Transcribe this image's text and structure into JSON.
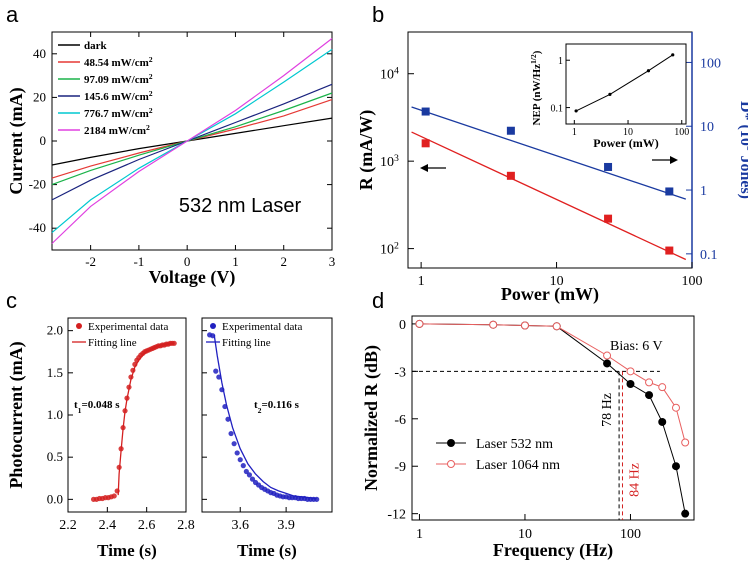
{
  "chart_data": [
    {
      "panel": "a",
      "type": "line",
      "xlabel": "Voltage (V)",
      "ylabel": "Current (mA)",
      "xlim": [
        -2.8,
        3
      ],
      "ylim": [
        -50,
        50
      ],
      "xticks": [
        -2,
        -1,
        0,
        1,
        2,
        3
      ],
      "yticks": [
        -40,
        -20,
        0,
        20,
        40
      ],
      "annotation": "532 nm Laser",
      "legend": {
        "position": "top-left",
        "entries": [
          {
            "label": "dark",
            "sup": ""
          },
          {
            "label": "48.54 mW/cm",
            "sup": "2"
          },
          {
            "label": "97.09 mW/cm",
            "sup": "2"
          },
          {
            "label": "145.6 mW/cm",
            "sup": "2"
          },
          {
            "label": "776.7 mW/cm",
            "sup": "2"
          },
          {
            "label": "2184  mW/cm",
            "sup": "2"
          }
        ]
      },
      "series": [
        {
          "color": "#000000",
          "x": [
            -2.8,
            -2,
            -1,
            0,
            1,
            2,
            3
          ],
          "y": [
            -11,
            -7.5,
            -3.5,
            0,
            3.5,
            7,
            10.5
          ]
        },
        {
          "color": "#e53935",
          "x": [
            -2.8,
            -2,
            -1,
            0,
            1,
            2,
            3
          ],
          "y": [
            -17,
            -11.5,
            -5.5,
            0,
            5.5,
            11.5,
            19
          ]
        },
        {
          "color": "#1bb34a",
          "x": [
            -2.8,
            -2,
            -1,
            0,
            1,
            2,
            3
          ],
          "y": [
            -20,
            -13.5,
            -6.5,
            0,
            6.5,
            14,
            22
          ]
        },
        {
          "color": "#1a237e",
          "x": [
            -2.8,
            -2,
            -1,
            0,
            1,
            2,
            3
          ],
          "y": [
            -27,
            -18,
            -8.5,
            0,
            8.5,
            17,
            26
          ]
        },
        {
          "color": "#00c8d0",
          "x": [
            -2.8,
            -2,
            -1,
            0,
            1,
            2,
            3
          ],
          "y": [
            -42,
            -27,
            -12.5,
            0,
            12.5,
            27,
            42
          ]
        },
        {
          "color": "#e040e0",
          "x": [
            -2.8,
            -2,
            -1,
            0,
            1,
            2,
            3
          ],
          "y": [
            -47,
            -30,
            -14,
            0,
            14,
            30,
            47
          ]
        }
      ]
    },
    {
      "panel": "b",
      "type": "scatter",
      "xlabel": "Power (mW)",
      "ylabel": "R (mA/W)",
      "ylabel2_main": "D* (10",
      "ylabel2_sup": "9",
      "ylabel2_end": " Jones)",
      "xscale": "log",
      "yscale": "log",
      "xlim": [
        0.8,
        100
      ],
      "ylim": [
        60,
        30000
      ],
      "ylim2": [
        0.06,
        300
      ],
      "xticks": [
        {
          "value": 1,
          "label": "1"
        },
        {
          "value": 10,
          "label": "10"
        },
        {
          "value": 100,
          "label": "100"
        }
      ],
      "yticks": [
        {
          "value": 100,
          "base": "10",
          "exp": "2"
        },
        {
          "value": 1000,
          "base": "10",
          "exp": "3"
        },
        {
          "value": 10000,
          "base": "10",
          "exp": "4"
        }
      ],
      "yticks2": [
        {
          "value": 0.1,
          "label": "0.1"
        },
        {
          "value": 1,
          "label": "1"
        },
        {
          "value": 10,
          "label": "10"
        },
        {
          "value": 100,
          "label": "100"
        }
      ],
      "series": [
        {
          "axis": "left",
          "color": "#e02020",
          "marker": "square",
          "x": [
            1.08,
            4.6,
            24,
            68
          ],
          "y": [
            1600,
            680,
            220,
            95
          ],
          "fit_x": [
            0.85,
            90
          ],
          "fit_y": [
            2150,
            75
          ]
        },
        {
          "axis": "right",
          "color": "#1a3aa0",
          "marker": "square",
          "x": [
            1.08,
            4.6,
            24,
            68
          ],
          "y": [
            17,
            8.5,
            2.3,
            0.95
          ],
          "fit_x": [
            0.85,
            90
          ],
          "fit_y": [
            20,
            0.72
          ]
        }
      ],
      "inset": {
        "type": "line",
        "xlabel": "Power (mW)",
        "ylabel_main": "NEP (nW/Hz",
        "ylabel_sup": "1/2",
        "ylabel_end": ")",
        "xscale": "log",
        "yscale": "log",
        "xlim": [
          0.7,
          120
        ],
        "ylim": [
          0.045,
          2.2
        ],
        "xticks": [
          {
            "value": 1,
            "label": "1"
          },
          {
            "value": 10,
            "label": "10"
          },
          {
            "value": 100,
            "label": "100"
          }
        ],
        "yticks": [
          {
            "value": 0.1,
            "label": "0.1"
          },
          {
            "value": 1,
            "label": "1"
          }
        ],
        "x": [
          1.08,
          4.6,
          24,
          68
        ],
        "y": [
          0.085,
          0.19,
          0.6,
          1.3
        ]
      }
    },
    {
      "panel": "c",
      "type": "scatter",
      "ylabel": "Photocurrent (mA)",
      "xlabel": "Time (s)",
      "ylim": [
        -0.15,
        2.15
      ],
      "yticks": [
        0.0,
        0.5,
        1.0,
        1.5,
        2.0
      ],
      "ytick_labels": [
        "0.0",
        "0.5",
        "1.0",
        "1.5",
        "2.0"
      ],
      "subplots": [
        {
          "xlim": [
            2.2,
            2.8
          ],
          "xticks": [
            2.2,
            2.4,
            2.6,
            2.8
          ],
          "xtick_labels": [
            "2.2",
            "2.4",
            "2.6",
            "2.8"
          ],
          "legend": [
            "Experimental data",
            "Fitting line"
          ],
          "time_label": "t",
          "time_sub": "1",
          "time_value": "=0.048 s",
          "color": "#d42020",
          "data_x": [
            2.33,
            2.345,
            2.36,
            2.375,
            2.39,
            2.405,
            2.42,
            2.435,
            2.45,
            2.46,
            2.47,
            2.48,
            2.49,
            2.5,
            2.51,
            2.52,
            2.53,
            2.54,
            2.55,
            2.56,
            2.57,
            2.58,
            2.59,
            2.6,
            2.61,
            2.62,
            2.63,
            2.64,
            2.65,
            2.66,
            2.67,
            2.68,
            2.69,
            2.7,
            2.71,
            2.72,
            2.73,
            2.74
          ],
          "data_y": [
            0.0,
            0.0,
            0.01,
            0.01,
            0.02,
            0.02,
            0.03,
            0.04,
            0.1,
            0.38,
            0.6,
            0.85,
            1.05,
            1.2,
            1.33,
            1.45,
            1.53,
            1.6,
            1.65,
            1.68,
            1.71,
            1.73,
            1.75,
            1.76,
            1.77,
            1.78,
            1.79,
            1.8,
            1.81,
            1.82,
            1.82,
            1.83,
            1.83,
            1.84,
            1.84,
            1.85,
            1.85,
            1.85
          ],
          "fit_x": [
            2.455,
            2.46,
            2.47,
            2.48,
            2.49,
            2.5,
            2.52,
            2.54,
            2.56,
            2.58,
            2.6,
            2.63,
            2.66,
            2.7,
            2.74
          ],
          "fit_y": [
            0.05,
            0.3,
            0.58,
            0.84,
            1.04,
            1.19,
            1.42,
            1.57,
            1.65,
            1.71,
            1.75,
            1.79,
            1.82,
            1.84,
            1.85
          ]
        },
        {
          "xlim": [
            3.35,
            4.2
          ],
          "xticks": [
            3.6,
            3.9
          ],
          "xtick_labels": [
            "3.6",
            "3.9"
          ],
          "legend": [
            "Experimental data",
            "Fitting line"
          ],
          "time_label": "t",
          "time_sub": "2",
          "time_value": "=0.116 s",
          "color": "#2020c0",
          "data_x": [
            3.4,
            3.42,
            3.44,
            3.46,
            3.48,
            3.5,
            3.52,
            3.54,
            3.56,
            3.58,
            3.6,
            3.62,
            3.64,
            3.66,
            3.68,
            3.7,
            3.72,
            3.74,
            3.76,
            3.78,
            3.8,
            3.82,
            3.84,
            3.86,
            3.88,
            3.9,
            3.92,
            3.94,
            3.96,
            3.98,
            4.0,
            4.02,
            4.04,
            4.06,
            4.08,
            4.1
          ],
          "data_y": [
            1.95,
            1.94,
            1.52,
            1.45,
            1.3,
            1.1,
            0.95,
            0.78,
            0.66,
            0.55,
            0.47,
            0.4,
            0.33,
            0.29,
            0.24,
            0.2,
            0.17,
            0.14,
            0.12,
            0.1,
            0.08,
            0.07,
            0.05,
            0.04,
            0.03,
            0.03,
            0.02,
            0.02,
            0.02,
            0.01,
            0.01,
            0.01,
            0.0,
            0.0,
            0.0,
            0.0
          ],
          "fit_x": [
            3.43,
            3.45,
            3.48,
            3.51,
            3.55,
            3.6,
            3.65,
            3.7,
            3.75,
            3.8,
            3.85,
            3.9,
            3.95,
            4.0,
            4.05,
            4.1
          ],
          "fit_y": [
            1.95,
            1.7,
            1.38,
            1.12,
            0.85,
            0.6,
            0.42,
            0.3,
            0.21,
            0.14,
            0.1,
            0.07,
            0.04,
            0.03,
            0.02,
            0.01
          ]
        }
      ]
    },
    {
      "panel": "d",
      "type": "line",
      "xlabel": "Frequency (Hz)",
      "ylabel": "Normalized R (dB)",
      "xscale": "log",
      "xlim": [
        0.85,
        400
      ],
      "ylim": [
        -12.4,
        0.5
      ],
      "xticks": [
        {
          "value": 1,
          "label": "1"
        },
        {
          "value": 10,
          "label": "10"
        },
        {
          "value": 100,
          "label": "100"
        }
      ],
      "yticks": [
        0,
        -3,
        -6,
        -9,
        -12
      ],
      "annotation": "Bias: 6 V",
      "ref_level": -3,
      "cutoffs": [
        {
          "value": 78,
          "label": "78 Hz",
          "color": "#000000"
        },
        {
          "value": 84,
          "label": "84 Hz",
          "color": "#d42020"
        }
      ],
      "series": [
        {
          "name": "Laser 532 nm",
          "color": "#000000",
          "marker": "filled-circle",
          "x": [
            1,
            5,
            10,
            20,
            60,
            100,
            150,
            200,
            270,
            330
          ],
          "y": [
            0,
            -0.05,
            -0.1,
            -0.15,
            -2.5,
            -3.8,
            -4.5,
            -6.2,
            -9,
            -12
          ]
        },
        {
          "name": "Laser 1064 nm",
          "color": "#e86060",
          "marker": "open-circle",
          "x": [
            1,
            5,
            10,
            20,
            60,
            100,
            150,
            200,
            270,
            330
          ],
          "y": [
            0,
            -0.05,
            -0.1,
            -0.15,
            -2.0,
            -3.0,
            -3.7,
            -4.0,
            -5.3,
            -7.5
          ]
        }
      ]
    }
  ]
}
